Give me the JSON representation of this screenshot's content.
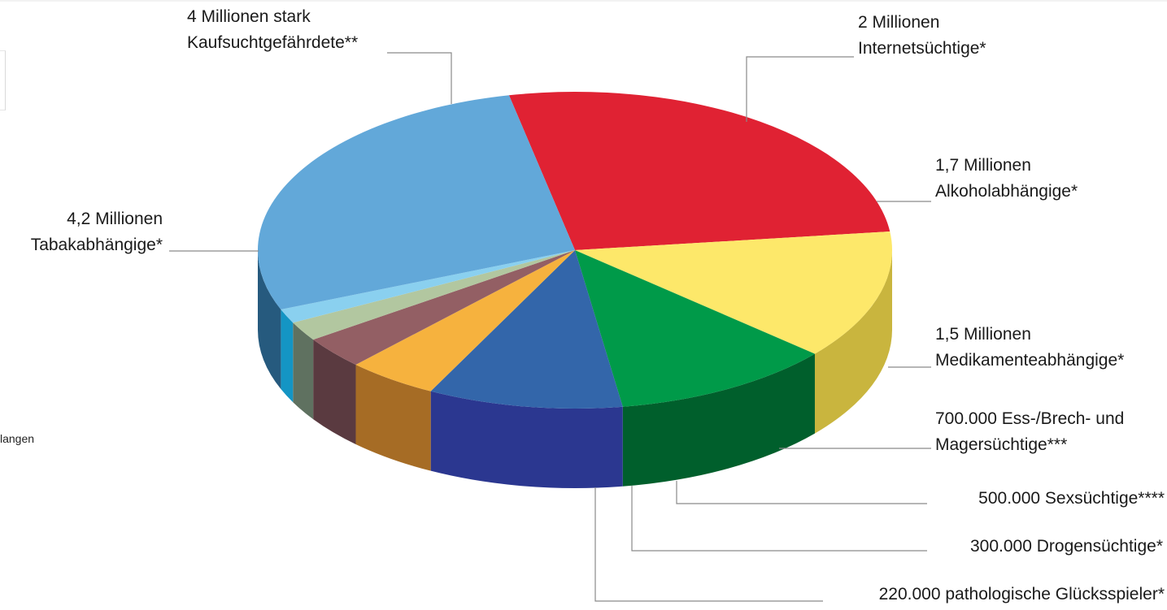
{
  "chart_data": {
    "type": "pie",
    "style": "3d",
    "unit": "Personen",
    "series": [
      {
        "label_lines": [
          "4 Millionen stark",
          "Kaufsuchtgefährdete**"
        ],
        "value": 4000000,
        "color": "#e02233",
        "side_color": "#9e1620"
      },
      {
        "label_lines": [
          "2 Millionen",
          "Internetsüchtige*"
        ],
        "value": 2000000,
        "color": "#fde86a",
        "side_color": "#c9b53e"
      },
      {
        "label_lines": [
          "1,7 Millionen",
          "Alkoholabhängige*"
        ],
        "value": 1700000,
        "color": "#009a49",
        "side_color": "#005f2c"
      },
      {
        "label_lines": [
          "1,5 Millionen",
          "Medikamenteabhängige*"
        ],
        "value": 1500000,
        "color": "#3366aa",
        "side_color": "#2b3790"
      },
      {
        "label_lines": [
          "700.000 Ess-/Brech- und",
          "Magersüchtige***"
        ],
        "value": 700000,
        "color": "#f6b23e",
        "side_color": "#a66c25"
      },
      {
        "label_lines": [
          "500.000 Sexsüchtige****"
        ],
        "value": 500000,
        "color": "#935f64",
        "side_color": "#5a3a40"
      },
      {
        "label_lines": [
          "300.000 Drogensüchtige*"
        ],
        "value": 300000,
        "color": "#b2c7a0",
        "side_color": "#5f7160"
      },
      {
        "label_lines": [
          "220.000 pathologische Glücksspieler*"
        ],
        "value": 220000,
        "color": "#8ad0ef",
        "side_color": "#1495c4"
      },
      {
        "label_lines": [
          "4,2 Millionen",
          "Tabakabhängige*"
        ],
        "value": 4200000,
        "color": "#62a8d9",
        "side_color": "#265a7e"
      }
    ]
  },
  "edge_text": "langen"
}
